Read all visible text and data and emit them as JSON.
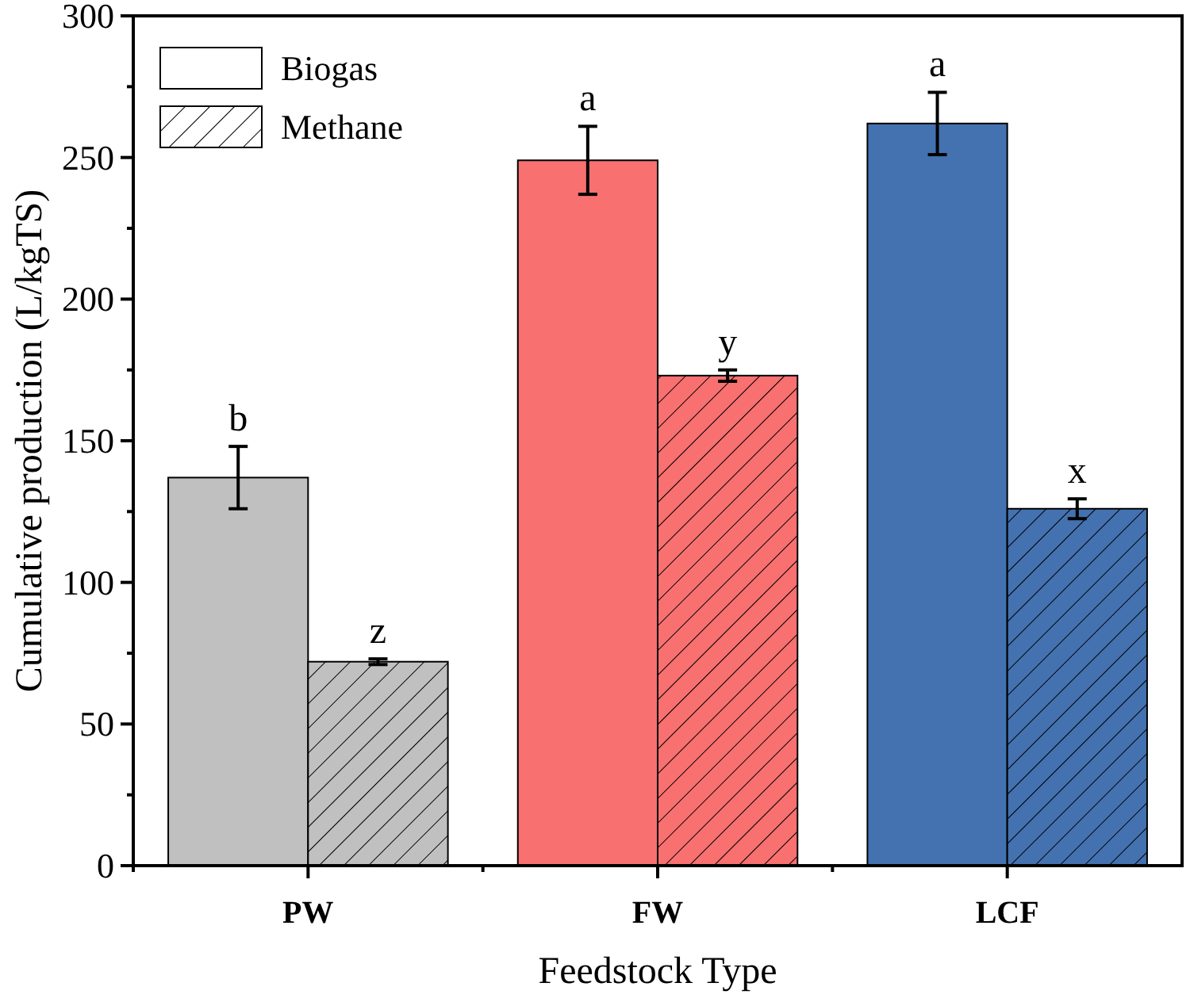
{
  "chart_data": {
    "type": "bar",
    "xlabel": "Feedstock Type",
    "ylabel": "Cumulative production (L/kgTS)",
    "categories": [
      "PW",
      "FW",
      "LCF"
    ],
    "series": [
      {
        "name": "Biogas",
        "color": "#ffffff",
        "colors": [
          "#c0c0c0",
          "#f87070",
          "#4472b0"
        ],
        "values": [
          137,
          249,
          262
        ],
        "errors": [
          11,
          12,
          11
        ],
        "value_labels": [
          "b",
          "a",
          "a"
        ]
      },
      {
        "name": "Methane",
        "color": "#ffffff",
        "colors": [
          "#c0c0c0",
          "#f87070",
          "#4472b0"
        ],
        "values": [
          72,
          173,
          126
        ],
        "errors": [
          1,
          2,
          3.5
        ],
        "value_labels": [
          "z",
          "y",
          "x"
        ]
      }
    ],
    "ylim": [
      0,
      300
    ],
    "yticks": [
      0,
      {
        "value": 25,
        "label": null
      },
      50,
      {
        "value": 75,
        "label": null
      },
      100,
      {
        "value": 125,
        "label": null
      },
      150,
      {
        "value": 175,
        "label": null
      },
      200,
      {
        "value": 225,
        "label": null
      },
      250,
      {
        "value": 275,
        "label": null
      },
      300
    ],
    "legend": "top left"
  }
}
